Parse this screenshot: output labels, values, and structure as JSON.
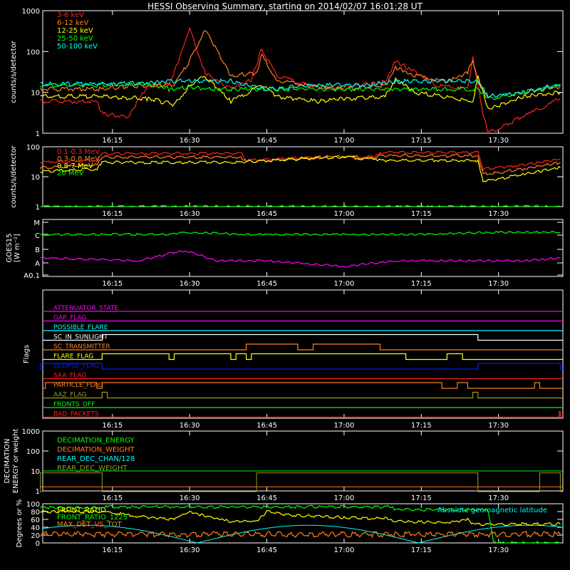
{
  "title": "HESSI Observing Summary, starting on 2014/02/07 16:01:28 UT",
  "x_ticks": [
    "16:15",
    "16:30",
    "16:45",
    "17:00",
    "17:15",
    "17:30"
  ],
  "colors": {
    "red": "#ff2020",
    "orange": "#ff7f1e",
    "yellow": "#ffff00",
    "green": "#00ff00",
    "cyan": "#00ffff",
    "magenta": "#ff00ff",
    "blue": "#0020ff",
    "olive": "#9a9a20",
    "white": "#ffffff"
  },
  "chart_data": [
    {
      "type": "line",
      "ylabel": "counts/s/detector",
      "y_scale": "log",
      "ylim": [
        1,
        1000
      ],
      "y_ticks": [
        "1",
        "10",
        "100",
        "1000"
      ],
      "legend": [
        "3-6 keV",
        "6-12 keV",
        "12-25 keV",
        "25-50 keV",
        "50-100 keV"
      ],
      "series": [
        {
          "name": "3-6 keV",
          "color": "red",
          "x": [
            "16:01",
            "16:12",
            "16:13",
            "16:18",
            "16:22",
            "16:26",
            "16:28",
            "16:30",
            "16:33",
            "16:38",
            "16:42",
            "16:44",
            "16:47",
            "16:53",
            "16:58",
            "17:03",
            "17:08",
            "17:10",
            "17:14",
            "17:18",
            "17:24",
            "17:25",
            "17:26",
            "17:27",
            "17:28",
            "17:36",
            "17:42"
          ],
          "y": [
            6,
            6,
            3,
            2.5,
            15,
            15,
            70,
            350,
            30,
            12,
            20,
            120,
            25,
            15,
            12,
            15,
            18,
            60,
            30,
            15,
            12,
            70,
            15,
            3,
            1,
            3,
            7
          ]
        },
        {
          "name": "6-12 keV",
          "color": "orange",
          "x": [
            "16:01",
            "16:12",
            "16:22",
            "16:27",
            "16:30",
            "16:33",
            "16:38",
            "16:43",
            "16:44",
            "16:47",
            "16:53",
            "17:00",
            "17:08",
            "17:10",
            "17:14",
            "17:20",
            "17:24",
            "17:25",
            "17:26",
            "17:28",
            "17:35",
            "17:42"
          ],
          "y": [
            12,
            12,
            15,
            15,
            60,
            360,
            25,
            30,
            80,
            20,
            15,
            12,
            15,
            40,
            25,
            18,
            30,
            60,
            18,
            8,
            10,
            14
          ]
        },
        {
          "name": "12-25 keV",
          "color": "yellow",
          "x": [
            "16:01",
            "16:12",
            "16:22",
            "16:27",
            "16:30",
            "16:33",
            "16:38",
            "16:44",
            "16:47",
            "16:55",
            "17:00",
            "17:08",
            "17:10",
            "17:14",
            "17:25",
            "17:26",
            "17:28",
            "17:35",
            "17:42"
          ],
          "y": [
            8,
            8,
            7,
            5,
            15,
            25,
            6,
            15,
            8,
            6,
            7,
            8,
            20,
            10,
            6,
            25,
            4,
            8,
            10
          ]
        },
        {
          "name": "25-50 keV",
          "color": "green",
          "x": [
            "16:01",
            "16:12",
            "16:22",
            "16:26",
            "16:30",
            "16:35",
            "16:45",
            "17:00",
            "17:10",
            "17:20",
            "17:26",
            "17:28",
            "17:42"
          ],
          "y": [
            15,
            15,
            16,
            12,
            13,
            12,
            12,
            12,
            12,
            12,
            12,
            7,
            15
          ]
        },
        {
          "name": "50-100 keV",
          "color": "cyan",
          "x": [
            "16:01",
            "16:12",
            "16:22",
            "16:26",
            "16:38",
            "16:45",
            "16:55",
            "17:05",
            "17:09",
            "17:26",
            "17:28",
            "17:35",
            "17:42"
          ],
          "y": [
            16,
            16,
            17,
            19,
            19,
            12,
            15,
            15,
            19,
            19,
            8,
            10,
            16
          ]
        }
      ]
    },
    {
      "type": "line",
      "ylabel": "counts/s/detector",
      "y_scale": "log",
      "ylim": [
        1,
        100
      ],
      "y_ticks": [
        "1",
        "10",
        "100"
      ],
      "legend": [
        "0.1-0.3 MeV",
        "0.3-0.8 MeV",
        "0.8-7 MeV",
        "20 MeV"
      ],
      "series": [
        {
          "name": "0.1-0.3 MeV",
          "color": "red",
          "x": [
            "16:01",
            "16:12",
            "16:13",
            "16:40",
            "16:41",
            "16:55",
            "17:00",
            "17:06",
            "17:07",
            "17:26",
            "17:27",
            "17:35",
            "17:42"
          ],
          "y": [
            30,
            35,
            60,
            60,
            35,
            45,
            48,
            45,
            65,
            65,
            18,
            25,
            40
          ]
        },
        {
          "name": "0.3-0.8 MeV",
          "color": "orange",
          "x": [
            "16:01",
            "16:12",
            "16:13",
            "16:40",
            "16:41",
            "16:55",
            "17:00",
            "17:06",
            "17:07",
            "17:26",
            "17:27",
            "17:35",
            "17:42"
          ],
          "y": [
            20,
            25,
            45,
            45,
            32,
            45,
            48,
            40,
            50,
            50,
            12,
            18,
            30
          ]
        },
        {
          "name": "0.8-7 MeV",
          "color": "yellow",
          "x": [
            "16:01",
            "16:12",
            "16:13",
            "16:40",
            "16:41",
            "16:55",
            "17:00",
            "17:06",
            "17:07",
            "17:26",
            "17:27",
            "17:35",
            "17:42"
          ],
          "y": [
            15,
            18,
            30,
            30,
            32,
            42,
            45,
            38,
            35,
            35,
            7,
            12,
            20
          ]
        },
        {
          "name": "20 MeV",
          "color": "green",
          "x": [
            "16:01",
            "17:42"
          ],
          "y": [
            1,
            1
          ]
        }
      ]
    },
    {
      "type": "line",
      "ylabel": "GOES15 [W m⁻²]",
      "y_scale": "categorical-log",
      "y_ticks": [
        "A0.1",
        "A",
        "B",
        "C",
        "M"
      ],
      "series": [
        {
          "name": "GOES long",
          "color": "green",
          "x": [
            "16:01",
            "16:25",
            "16:30",
            "16:40",
            "17:00",
            "17:15",
            "17:30",
            "17:42"
          ],
          "y": [
            "C",
            "C",
            "C+",
            "C",
            "C",
            "C",
            "C+",
            "C+"
          ]
        },
        {
          "name": "GOES short",
          "color": "magenta",
          "x": [
            "16:01",
            "16:20",
            "16:28",
            "16:30",
            "16:35",
            "16:45",
            "17:00",
            "17:10",
            "17:25",
            "17:35",
            "17:42"
          ],
          "y": [
            "A+",
            "A",
            "B",
            "B",
            "A",
            "A",
            "A-",
            "A",
            "A",
            "A",
            "A+"
          ]
        }
      ]
    },
    {
      "type": "line",
      "ylabel": "Flags",
      "flags": [
        {
          "name": "ATTENUATOR_STATE",
          "color": "magenta"
        },
        {
          "name": "GAP_FLAG",
          "color": "magenta"
        },
        {
          "name": "POSSIBLE_FLARE",
          "color": "cyan"
        },
        {
          "name": "SC_IN_SUNLIGHT",
          "color": "white"
        },
        {
          "name": "SC_TRANSMITTER",
          "color": "orange"
        },
        {
          "name": "FLARE_FLAG",
          "color": "yellow"
        },
        {
          "name": "ECLIPSE_FLAG",
          "color": "blue"
        },
        {
          "name": "SAA_FLAG",
          "color": "red"
        },
        {
          "name": "PARTICLE_FLAG",
          "color": "orange"
        },
        {
          "name": "AAZ_FLAG",
          "color": "olive"
        },
        {
          "name": "FRONTS_OFF",
          "color": "green"
        },
        {
          "name": "BAD_PACKETS",
          "color": "red"
        }
      ]
    },
    {
      "type": "line",
      "ylabel": "DECIMATION ENERGY or weight",
      "y_scale": "log",
      "ylim": [
        1,
        1000
      ],
      "y_ticks": [
        "1",
        "10",
        "100",
        "1000"
      ],
      "legend": [
        "DECIMATION_ENERGY",
        "DECIMATION_WEIGHT",
        "REAR_DEC_CHAN/128",
        "REAR_DEC_WEIGHT"
      ]
    },
    {
      "type": "line",
      "ylabel": "Degrees or %",
      "ylim": [
        0,
        100
      ],
      "y_ticks": [
        "0",
        "20",
        "40",
        "60",
        "80",
        "100"
      ],
      "legend": [
        "FRONT_RATIO",
        "FRONT_RATIO_1225",
        "MAX_DET_VS_TOT"
      ],
      "annotation": "Absolute geomagnetic latitude",
      "series": [
        {
          "name": "FRONT_RATIO",
          "color": "yellow",
          "x": [
            "16:01",
            "16:13",
            "16:22",
            "16:27",
            "16:30",
            "16:34",
            "16:38",
            "16:43",
            "16:45",
            "16:50",
            "17:00",
            "17:08",
            "17:10",
            "17:20",
            "17:24",
            "17:25",
            "17:26",
            "17:42"
          ],
          "y": [
            80,
            80,
            65,
            60,
            80,
            65,
            55,
            55,
            80,
            70,
            65,
            62,
            55,
            52,
            60,
            50,
            48,
            48
          ]
        },
        {
          "name": "FRONT_RATIO_1225",
          "color": "green",
          "x": [
            "16:01",
            "16:13",
            "16:14",
            "17:09",
            "17:10",
            "17:28",
            "17:29",
            "17:42"
          ],
          "y": [
            90,
            90,
            92,
            92,
            85,
            85,
            0,
            0
          ]
        },
        {
          "name": "MAX_DET_VS_TOT",
          "color": "orange",
          "x": [
            "16:01",
            "17:42"
          ],
          "y": [
            22,
            22
          ]
        },
        {
          "name": "Absolute geomagnetic latitude",
          "color": "cyan",
          "x": [
            "16:01",
            "16:10",
            "16:31",
            "16:53",
            "17:14",
            "17:35",
            "17:42"
          ],
          "y": [
            28,
            45,
            0,
            45,
            0,
            45,
            40
          ]
        }
      ]
    }
  ]
}
